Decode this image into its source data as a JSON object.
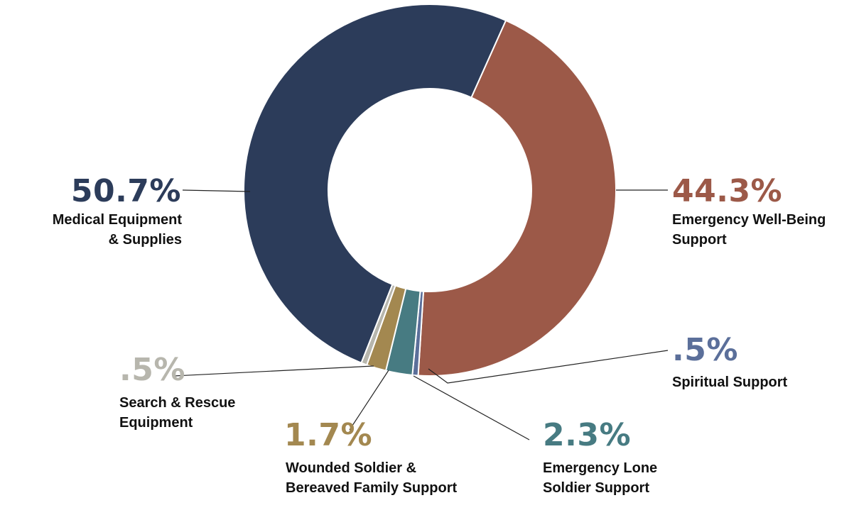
{
  "chart_data": {
    "type": "pie",
    "variant": "donut",
    "title": "",
    "legend": "none",
    "slices": [
      {
        "pct_label": "50.7%",
        "value": 50.7,
        "label_lines": [
          "Medical Equipment",
          "& Supplies"
        ],
        "color": "#2c3c5a"
      },
      {
        "pct_label": "44.3%",
        "value": 44.3,
        "label_lines": [
          "Emergency Well-Being",
          "Support"
        ],
        "color": "#9c5948"
      },
      {
        "pct_label": ".5%",
        "value": 0.5,
        "label_lines": [
          "Spiritual Support"
        ],
        "color": "#5b6f9a"
      },
      {
        "pct_label": "2.3%",
        "value": 2.3,
        "label_lines": [
          "Emergency Lone",
          "Soldier Support"
        ],
        "color": "#477b82"
      },
      {
        "pct_label": "1.7%",
        "value": 1.7,
        "label_lines": [
          "Wounded Soldier &",
          "Bereaved Family Support"
        ],
        "color": "#a38850"
      },
      {
        "pct_label": ".5%",
        "value": 0.5,
        "label_lines": [
          "Search & Rescue",
          "Equipment"
        ],
        "color": "#b7b6ad"
      }
    ]
  }
}
